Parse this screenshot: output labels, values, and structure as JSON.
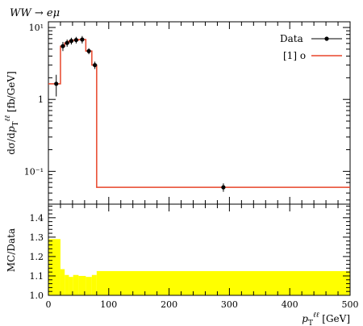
{
  "chart_data": {
    "type": "line",
    "title": "WW → eμ",
    "main_panel": {
      "ylabel": "dσ/dp_T^{ℓℓ} [fb/GeV]",
      "yscale": "log",
      "ylim": [
        0.035,
        12
      ],
      "ytick_labels": [
        "10¹",
        "1",
        "10⁻¹"
      ],
      "data": {
        "name": "Data",
        "x": [
          13,
          24,
          31,
          38,
          46,
          56,
          67,
          77,
          290
        ],
        "y": [
          1.65,
          5.5,
          6.1,
          6.5,
          6.7,
          6.8,
          4.7,
          3.0,
          0.06
        ],
        "yerr": [
          0.55,
          0.8,
          0.7,
          0.7,
          0.7,
          0.8,
          0.45,
          0.35,
          0.008
        ]
      },
      "prediction": {
        "name": "[1] o",
        "color": "#e8452a",
        "bin_edges": [
          0,
          20,
          27,
          34,
          41,
          50,
          62,
          72,
          80,
          500
        ],
        "values": [
          1.65,
          5.5,
          6.1,
          6.5,
          6.7,
          6.8,
          4.7,
          3.0,
          0.06
        ]
      }
    },
    "ratio_panel": {
      "ylabel": "MC/Data",
      "ylim": [
        1.0,
        1.47
      ],
      "yticks": [
        1.0,
        1.1,
        1.2,
        1.3,
        1.4
      ],
      "ytick_labels": [
        "1.0",
        "1.1",
        "1.2",
        "1.3",
        "1.4"
      ],
      "band_color": "#ffff00",
      "bin_edges": [
        0,
        20,
        27,
        34,
        41,
        50,
        62,
        72,
        80,
        500
      ],
      "band_upper": [
        1.29,
        1.135,
        1.105,
        1.095,
        1.105,
        1.1,
        1.095,
        1.105,
        1.125
      ],
      "band_lower": [
        1.0,
        1.0,
        1.0,
        1.0,
        1.0,
        1.0,
        1.0,
        1.0,
        1.0
      ]
    },
    "xlabel": "p_T^{ℓℓ} [GeV]",
    "xlim": [
      0,
      500
    ],
    "xticks": [
      0,
      100,
      200,
      300,
      400,
      500
    ],
    "xtick_labels": [
      "0",
      "100",
      "200",
      "300",
      "400",
      "500"
    ],
    "legend_placement": "top-right",
    "grid": false
  }
}
